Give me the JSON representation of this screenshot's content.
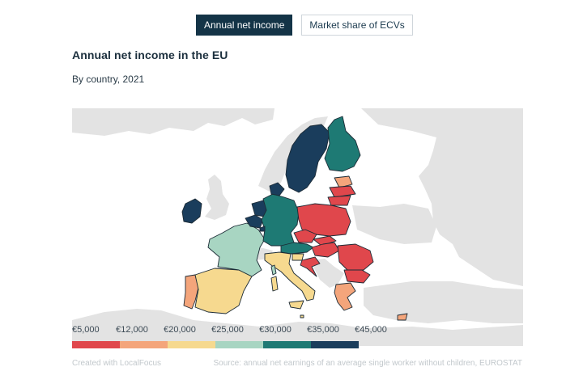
{
  "tabs": [
    {
      "label": "Annual net income",
      "active": true
    },
    {
      "label": "Market share of ECVs",
      "active": false
    }
  ],
  "title": "Annual net income in the EU",
  "subtitle": "By country, 2021",
  "legend": {
    "labels": [
      "€5,000",
      "€12,000",
      "€20,000",
      "€25,000",
      "€30,000",
      "€35,000",
      "€45,000"
    ],
    "colors": [
      "#e0474c",
      "#f4a57b",
      "#f6d98f",
      "#a8d5c2",
      "#1e7a74",
      "#1a3d5c"
    ]
  },
  "footer": {
    "credit": "Created with LocalFocus",
    "source": "Source:  annual net earnings of an average single worker without children, EUROSTAT"
  },
  "colors": {
    "band_5000_12000": "#e0474c",
    "band_12000_20000": "#f4a57b",
    "band_20000_25000": "#f6d98f",
    "band_25000_30000": "#a8d5c2",
    "band_30000_35000": "#1e7a74",
    "band_35000_45000": "#1a3d5c",
    "non_eu_land": "#e3e3e3",
    "active_tab": "#143447"
  }
}
